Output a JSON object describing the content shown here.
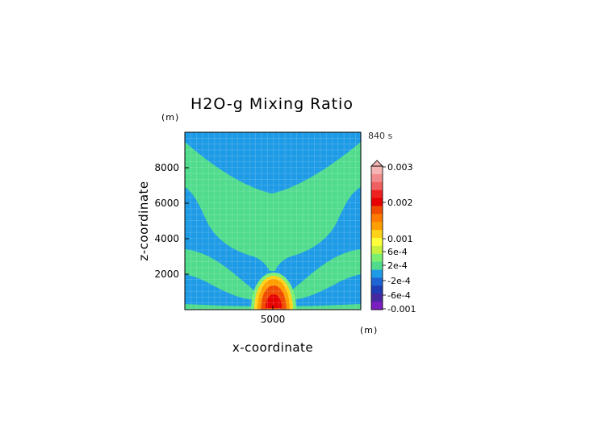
{
  "chart_data": {
    "type": "heatmap",
    "title": "H2O-g Mixing Ratio",
    "xlabel": "x-coordinate",
    "ylabel": "z-coordinate",
    "x_unit": "(m)",
    "y_unit": "(m)",
    "time_label": "840 s",
    "xlim": [
      1000,
      9000
    ],
    "ylim": [
      0,
      10000
    ],
    "x_ticks": [
      5000
    ],
    "x_tick_labels": [
      "5000"
    ],
    "y_ticks": [
      2000,
      4000,
      6000,
      8000
    ],
    "y_tick_labels": [
      "2000",
      "4000",
      "6000",
      "8000"
    ],
    "colorbar": {
      "ticks": [
        {
          "value": 0.003,
          "label": "0.003"
        },
        {
          "value": 0.002,
          "label": "0.002"
        },
        {
          "value": 0.001,
          "label": "0.001"
        },
        {
          "value": 0.0006,
          "label": "6e-4"
        },
        {
          "value": 0.0002,
          "label": "2e-4"
        },
        {
          "value": -0.0002,
          "label": "-2e-4"
        },
        {
          "value": -0.0006,
          "label": "-6e-4"
        },
        {
          "value": -0.001,
          "label": "-0.001"
        }
      ],
      "levels": [
        {
          "color": "#f6b4b4"
        },
        {
          "color": "#f28c8c"
        },
        {
          "color": "#ef6060"
        },
        {
          "color": "#ee2020"
        },
        {
          "color": "#e60000"
        },
        {
          "color": "#f04a00"
        },
        {
          "color": "#ff7a00"
        },
        {
          "color": "#ff9e00"
        },
        {
          "color": "#ffd21a"
        },
        {
          "color": "#ffff3c"
        },
        {
          "color": "#c8f03c"
        },
        {
          "color": "#7bef72"
        },
        {
          "color": "#50dc8c"
        },
        {
          "color": "#1e9be6"
        },
        {
          "color": "#1e64d2"
        },
        {
          "color": "#1e3cb4"
        },
        {
          "color": "#4628a0"
        },
        {
          "color": "#7a1ebe"
        }
      ]
    },
    "fields": {
      "background": "#1e9be6",
      "upper_band": "#50dc8c",
      "core_outer": "#ffd21a",
      "core_mid": "#ff9e00",
      "core_inner": "#f04a00",
      "core_center": "#e60000"
    }
  }
}
